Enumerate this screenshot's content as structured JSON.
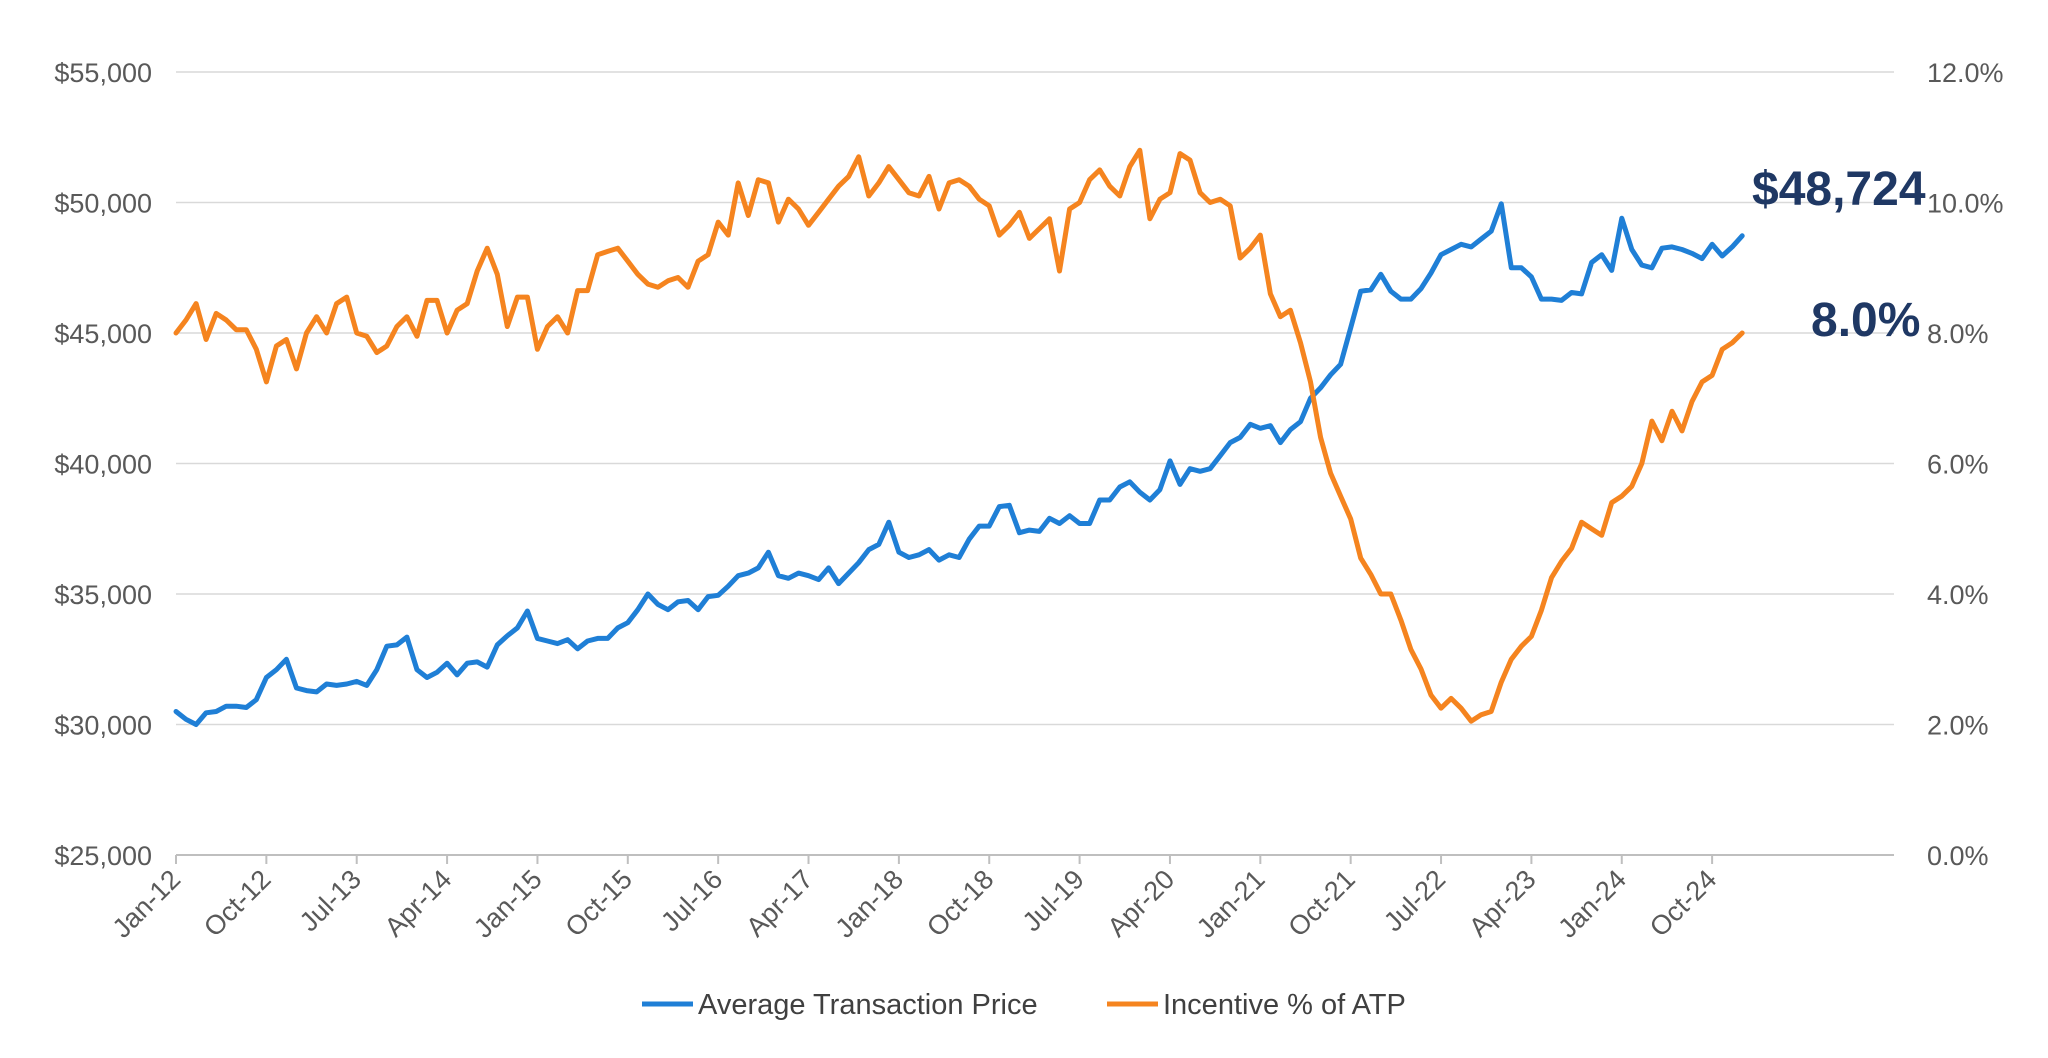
{
  "chart_data": {
    "type": "line",
    "title": "",
    "xlabel": "",
    "ylabel": "",
    "y_left": {
      "min": 25000,
      "max": 55000,
      "ticks": [
        25000,
        30000,
        35000,
        40000,
        45000,
        50000,
        55000
      ],
      "tick_labels": [
        "$25,000",
        "$30,000",
        "$35,000",
        "$40,000",
        "$45,000",
        "$50,000",
        "$55,000"
      ]
    },
    "y_right": {
      "min": 0,
      "max": 12,
      "ticks": [
        0,
        2,
        4,
        6,
        8,
        10,
        12
      ],
      "tick_labels": [
        "0.0%",
        "2.0%",
        "4.0%",
        "6.0%",
        "8.0%",
        "10.0%",
        "12.0%"
      ]
    },
    "x_tick_labels": [
      "Jan-12",
      "Oct-12",
      "Jul-13",
      "Apr-14",
      "Jan-15",
      "Oct-15",
      "Jul-16",
      "Apr-17",
      "Jan-18",
      "Oct-18",
      "Jul-19",
      "Apr-20",
      "Jan-21",
      "Oct-21",
      "Jul-22",
      "Apr-23",
      "Jan-24",
      "Oct-24"
    ],
    "x_tick_months": [
      0,
      9,
      18,
      27,
      36,
      45,
      54,
      63,
      72,
      81,
      90,
      99,
      108,
      117,
      126,
      135,
      144,
      153
    ],
    "start_month": "Jan-12",
    "grid": true,
    "legend_position": "bottom",
    "series": [
      {
        "name": "Average Transaction Price",
        "axis": "left",
        "color": "#1f7fd6",
        "values": [
          30500,
          30200,
          30000,
          30450,
          30500,
          30700,
          30700,
          30650,
          30950,
          31800,
          32100,
          32500,
          31400,
          31300,
          31250,
          31550,
          31500,
          31550,
          31650,
          31500,
          32100,
          33000,
          33050,
          33350,
          32100,
          31800,
          32000,
          32350,
          31900,
          32350,
          32400,
          32200,
          33050,
          33400,
          33700,
          34350,
          33300,
          33200,
          33100,
          33250,
          32900,
          33200,
          33300,
          33300,
          33700,
          33900,
          34400,
          35000,
          34600,
          34400,
          34700,
          34750,
          34400,
          34900,
          34950,
          35300,
          35700,
          35800,
          36000,
          36600,
          35700,
          35600,
          35800,
          35700,
          35550,
          36000,
          35400,
          35800,
          36200,
          36700,
          36900,
          37750,
          36600,
          36400,
          36500,
          36700,
          36300,
          36500,
          36400,
          37100,
          37600,
          37600,
          38350,
          38400,
          37350,
          37450,
          37400,
          37900,
          37700,
          38000,
          37700,
          37700,
          38600,
          38600,
          39100,
          39300,
          38900,
          38600,
          39000,
          40100,
          39200,
          39800,
          39700,
          39800,
          40300,
          40800,
          41000,
          41500,
          41350,
          41450,
          40800,
          41300,
          41600,
          42500,
          42900,
          43400,
          43800,
          45200,
          46600,
          46650,
          47250,
          46600,
          46300,
          46300,
          46700,
          47300,
          48000,
          48200,
          48400,
          48300,
          48600,
          48900,
          49950,
          47500,
          47500,
          47150,
          46300,
          46300,
          46250,
          46550,
          46500,
          47700,
          48000,
          47400,
          49400,
          48200,
          47600,
          47500,
          48250,
          48300,
          48200,
          48050,
          47850,
          48400,
          47950,
          48300,
          48724
        ]
      },
      {
        "name": "Incentive % of ATP",
        "axis": "right",
        "color": "#f5841f",
        "values": [
          8.0,
          8.2,
          8.45,
          7.9,
          8.3,
          8.2,
          8.05,
          8.05,
          7.75,
          7.25,
          7.8,
          7.9,
          7.45,
          8.0,
          8.25,
          8.0,
          8.45,
          8.55,
          8.0,
          7.95,
          7.7,
          7.8,
          8.1,
          8.25,
          7.95,
          8.5,
          8.5,
          8.0,
          8.35,
          8.45,
          8.95,
          9.3,
          8.9,
          8.1,
          8.55,
          8.55,
          7.75,
          8.1,
          8.25,
          8.0,
          8.65,
          8.65,
          9.2,
          9.25,
          9.3,
          9.1,
          8.9,
          8.75,
          8.7,
          8.8,
          8.85,
          8.7,
          9.1,
          9.2,
          9.7,
          9.5,
          10.3,
          9.8,
          10.35,
          10.3,
          9.7,
          10.05,
          9.9,
          9.65,
          9.85,
          10.05,
          10.25,
          10.4,
          10.7,
          10.1,
          10.3,
          10.55,
          10.35,
          10.15,
          10.1,
          10.4,
          9.9,
          10.3,
          10.35,
          10.25,
          10.05,
          9.95,
          9.5,
          9.65,
          9.85,
          9.45,
          9.6,
          9.75,
          8.95,
          9.9,
          10.0,
          10.35,
          10.5,
          10.25,
          10.1,
          10.55,
          10.8,
          9.75,
          10.05,
          10.15,
          10.75,
          10.65,
          10.15,
          10.0,
          10.05,
          9.95,
          9.15,
          9.3,
          9.5,
          8.6,
          8.25,
          8.35,
          7.85,
          7.25,
          6.4,
          5.85,
          5.5,
          5.15,
          4.55,
          4.3,
          4.0,
          4.0,
          3.6,
          3.15,
          2.85,
          2.45,
          2.25,
          2.4,
          2.25,
          2.05,
          2.15,
          2.2,
          2.65,
          3.0,
          3.2,
          3.35,
          3.75,
          4.25,
          4.5,
          4.7,
          5.1,
          5.0,
          4.9,
          5.4,
          5.5,
          5.65,
          6.0,
          6.65,
          6.35,
          6.8,
          6.5,
          6.95,
          7.25,
          7.35,
          7.75,
          7.85,
          8.0
        ]
      }
    ],
    "annotations": [
      {
        "text": "$48,724",
        "series": "Average Transaction Price"
      },
      {
        "text": "8.0%",
        "series": "Incentive % of ATP"
      }
    ]
  }
}
